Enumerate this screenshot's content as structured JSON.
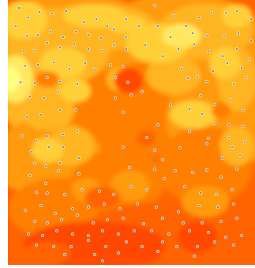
{
  "map": {
    "colors": {
      "background": "#ffffff",
      "level_0": "#ff4a00",
      "level_1": "#ff6400",
      "level_2": "#ff7f00",
      "level_3": "#ff9a10",
      "level_4": "#ffb420",
      "level_5": "#ffcf38",
      "level_6": "#ffe860",
      "level_7": "#ffff80",
      "marker_fill": "#7a8c8c",
      "marker_stroke": "#ffffff"
    },
    "marker_icon": "station-dot-icon"
  }
}
